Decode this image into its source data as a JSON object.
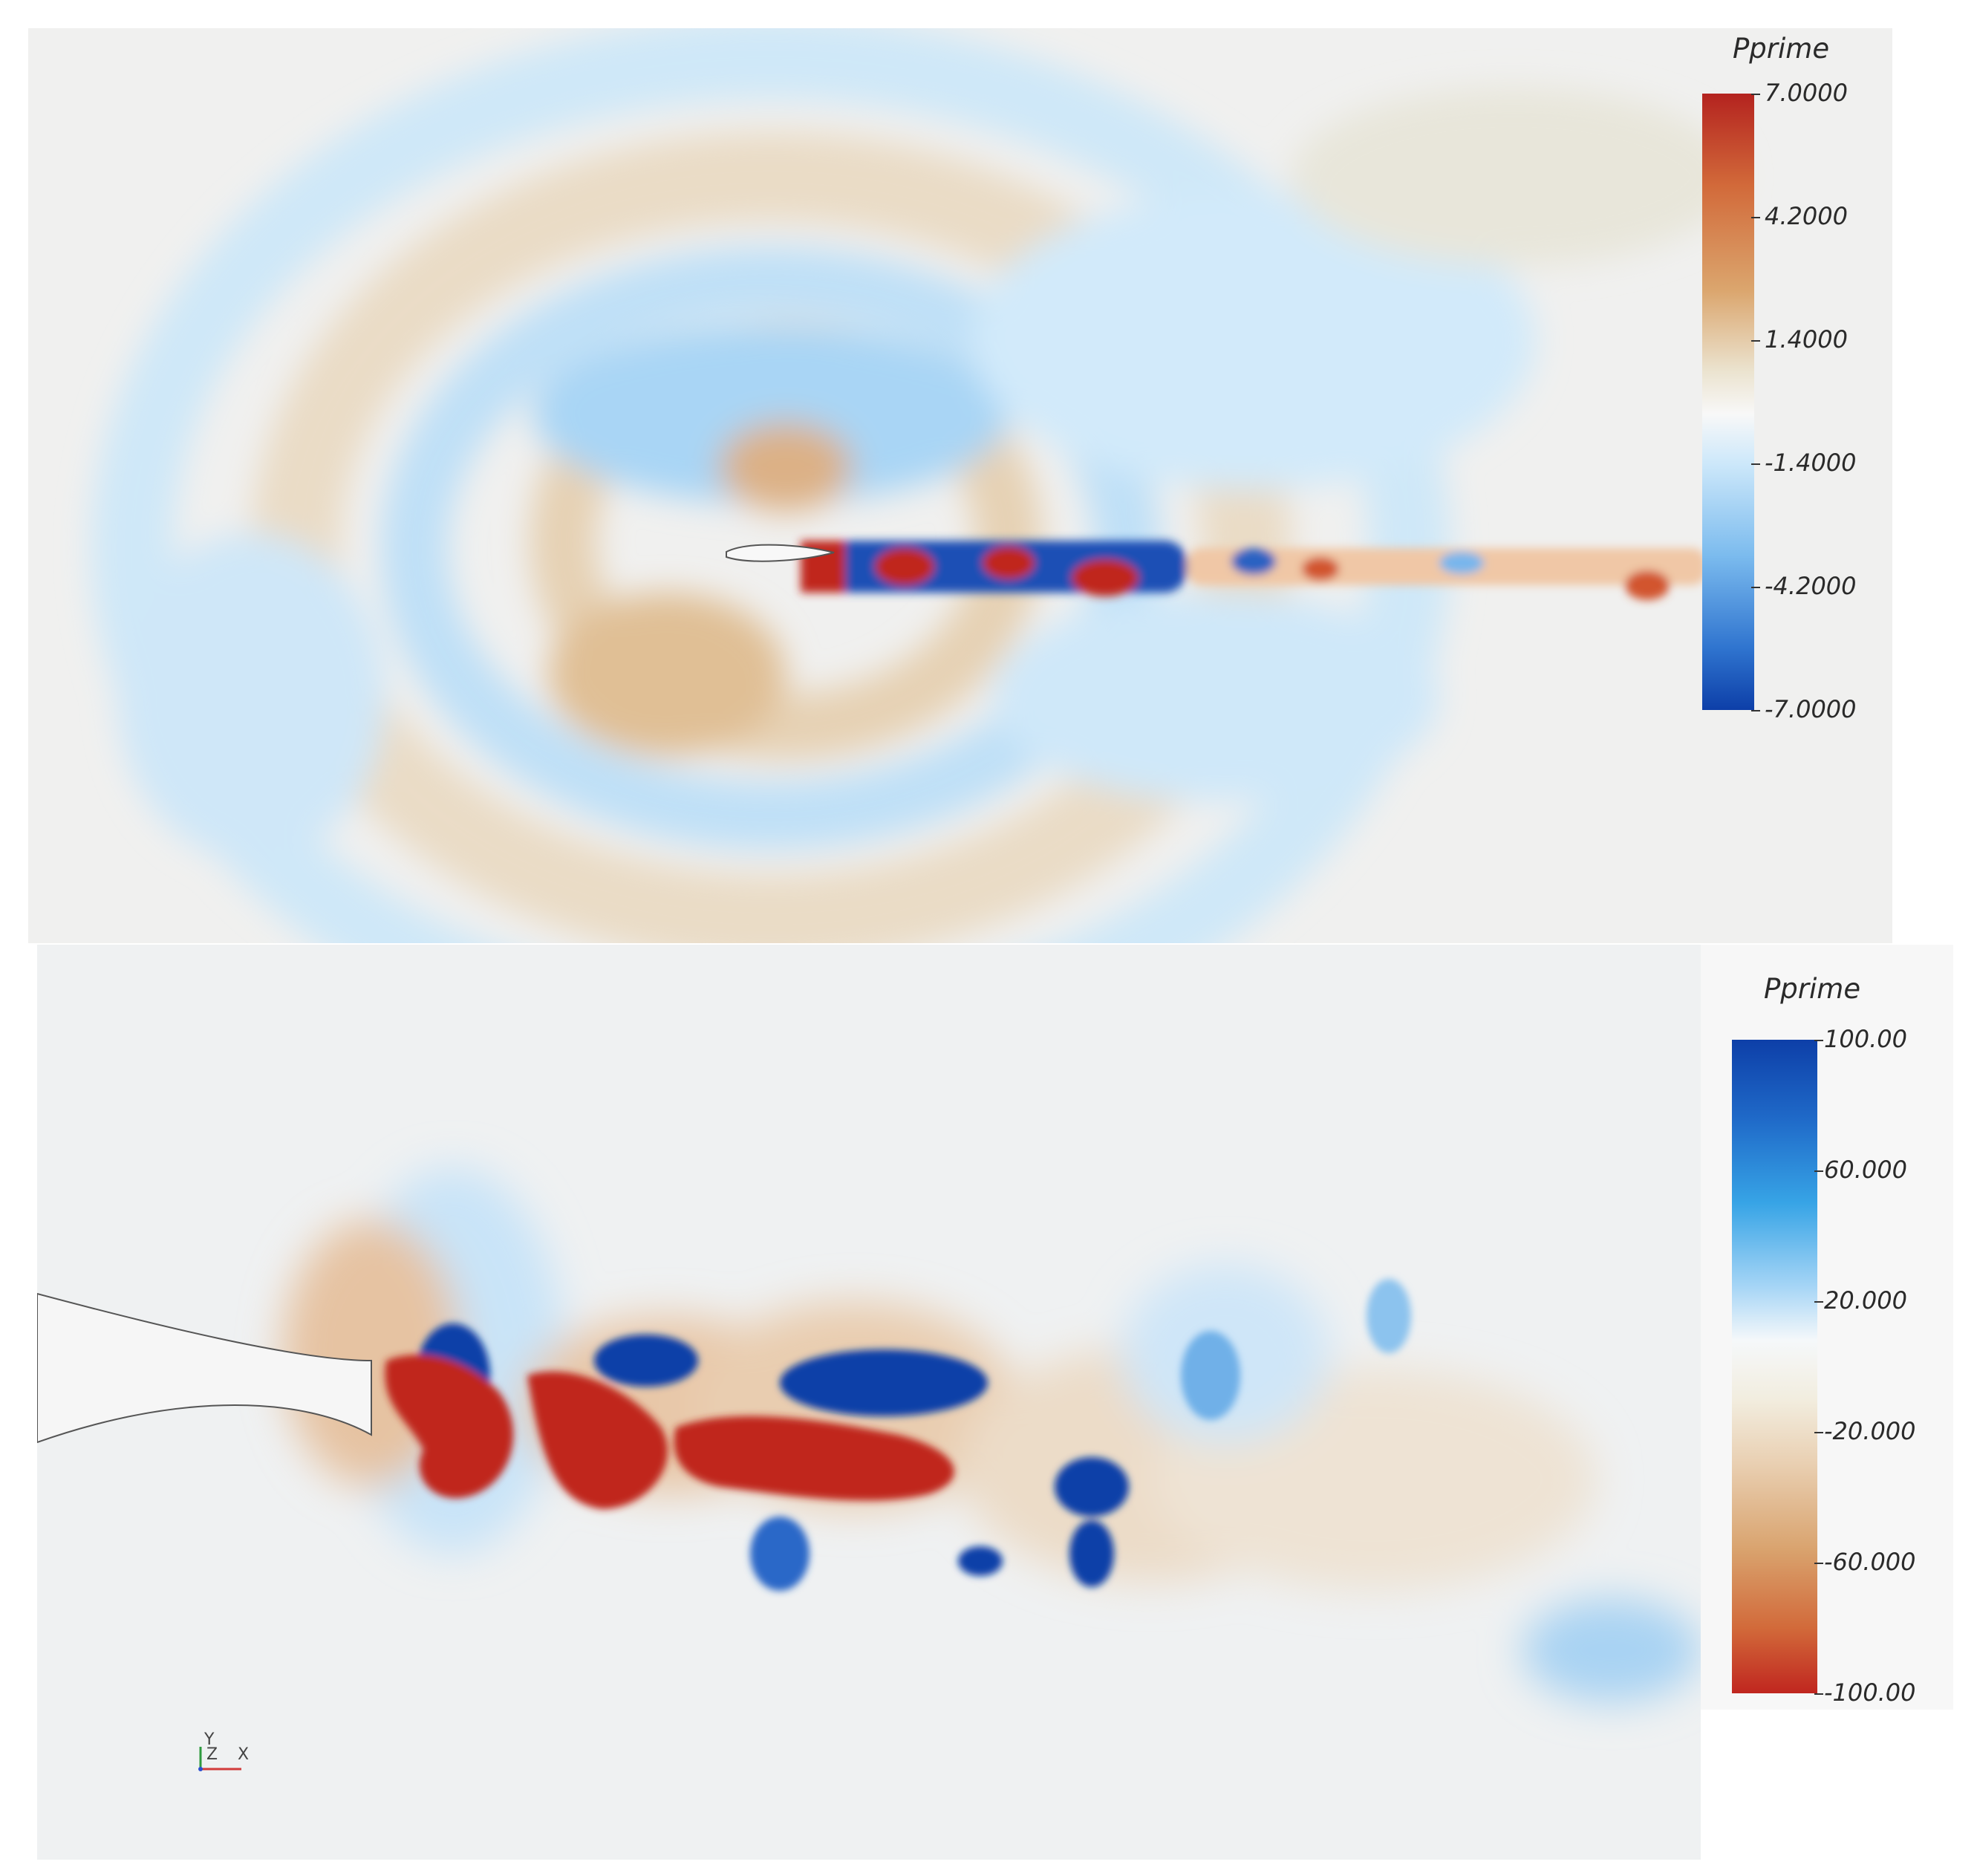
{
  "top_panel": {
    "legend": {
      "title": "Pprime",
      "ticks": [
        "7.0000",
        "4.2000",
        "1.4000",
        "-1.4000",
        "-4.2000",
        "-7.0000"
      ],
      "colors": {
        "max": "#b4231f",
        "warm": "#d9a56b",
        "neutral": "#f5f5f5",
        "cool": "#8fcaf0",
        "min": "#0d3fa8"
      }
    }
  },
  "bottom_panel": {
    "legend": {
      "title": "Pprime",
      "ticks": [
        "100.00",
        "60.000",
        "20.000",
        "-20.000",
        "-60.000",
        "-100.00"
      ],
      "colors": {
        "max": "#0d3fa8",
        "cool": "#8fcaf0",
        "neutral": "#f5f5f5",
        "warm": "#d9a56b",
        "min": "#b4231f"
      }
    },
    "axes": {
      "y": "Y",
      "z": "Z",
      "x": "X"
    }
  }
}
